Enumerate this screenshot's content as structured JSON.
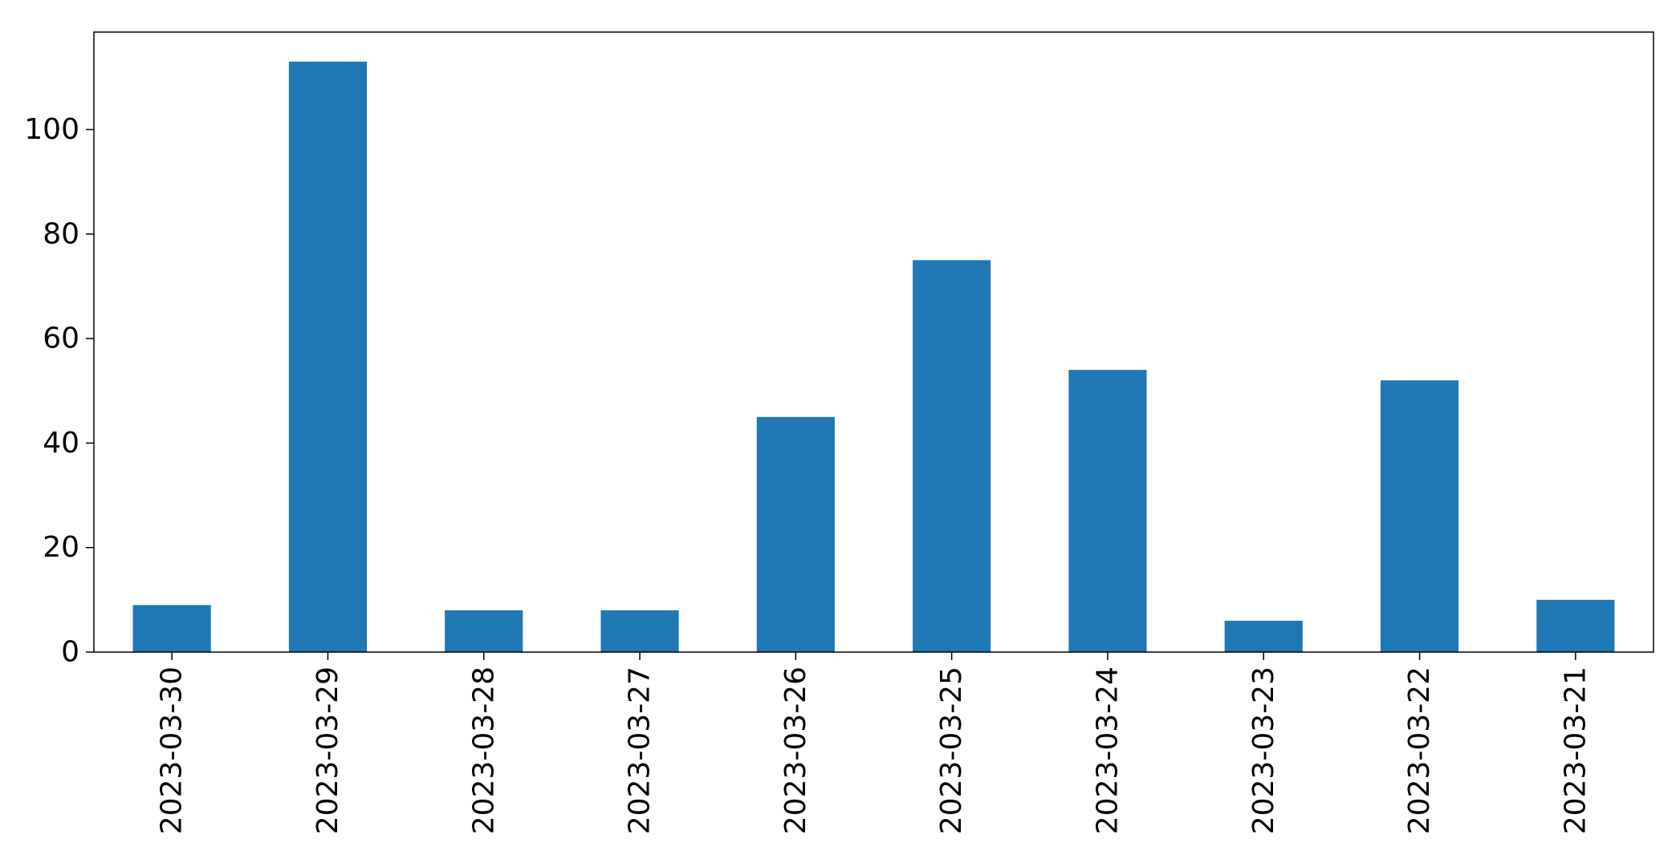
{
  "chart_data": {
    "type": "bar",
    "title": "",
    "xlabel": "",
    "ylabel": "",
    "categories": [
      "2023-03-30",
      "2023-03-29",
      "2023-03-28",
      "2023-03-27",
      "2023-03-26",
      "2023-03-25",
      "2023-03-24",
      "2023-03-23",
      "2023-03-22",
      "2023-03-21"
    ],
    "values": [
      9,
      113,
      8,
      8,
      45,
      75,
      54,
      6,
      52,
      10
    ],
    "ylim": [
      0,
      118.65
    ],
    "yticks": [
      0,
      20,
      40,
      60,
      80,
      100
    ],
    "bar_color": "#1f77b4",
    "grid": false,
    "legend": "none"
  }
}
